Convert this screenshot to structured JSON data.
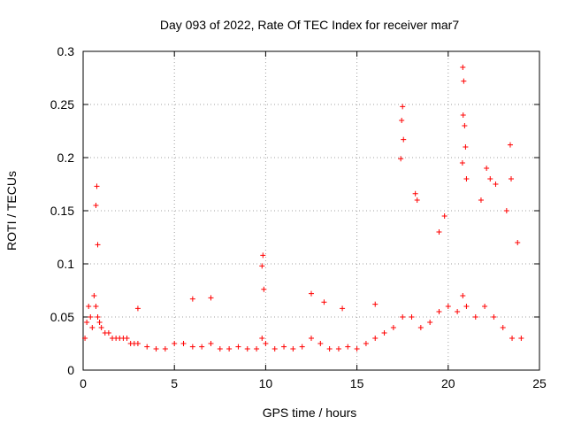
{
  "chart_data": {
    "type": "scatter",
    "title": "Day 093 of 2022, Rate Of TEC Index for receiver mar7",
    "xlabel": "GPS time / hours",
    "ylabel": "ROTI / TECUs",
    "xlim": [
      0,
      25
    ],
    "ylim": [
      0,
      0.3
    ],
    "x_ticks": [
      "0",
      "5",
      "10",
      "15",
      "20",
      "25"
    ],
    "y_ticks": [
      "0",
      "0.05",
      "0.1",
      "0.15",
      "0.2",
      "0.25",
      "0.3"
    ],
    "grid": true,
    "marker": "+",
    "color": "#ff0000",
    "x": [
      0.1,
      0.2,
      0.3,
      0.4,
      0.5,
      0.6,
      0.7,
      0.8,
      0.9,
      1.0,
      1.2,
      1.4,
      1.6,
      1.8,
      2.0,
      2.2,
      2.4,
      2.6,
      2.8,
      3.0,
      3.5,
      4.0,
      4.5,
      5.0,
      5.5,
      6.0,
      6.5,
      7.0,
      7.5,
      8.0,
      8.5,
      9.0,
      9.5,
      9.8,
      10.0,
      10.5,
      11.0,
      11.5,
      12.0,
      12.5,
      13.0,
      13.5,
      14.0,
      14.5,
      15.0,
      15.5,
      16.0,
      16.5,
      17.0,
      17.5,
      18.0,
      18.5,
      19.0,
      19.5,
      20.0,
      20.5,
      20.8,
      21.0,
      21.5,
      22.0,
      22.5,
      23.0,
      23.5,
      24.0,
      0.75,
      0.7,
      0.8,
      17.4,
      17.5,
      17.45,
      17.55,
      18.2,
      18.3,
      20.8,
      20.85,
      20.82,
      20.9,
      20.78,
      21.0,
      20.95,
      22.1,
      22.3,
      23.4,
      23.45,
      9.85,
      9.9,
      9.8,
      3.0,
      6.0,
      7.0,
      12.5,
      14.2,
      13.2,
      16.0,
      19.5,
      19.8,
      21.8,
      22.6,
      23.2,
      23.8
    ],
    "y": [
      0.03,
      0.045,
      0.06,
      0.05,
      0.04,
      0.07,
      0.06,
      0.05,
      0.045,
      0.04,
      0.035,
      0.035,
      0.03,
      0.03,
      0.03,
      0.03,
      0.03,
      0.025,
      0.025,
      0.025,
      0.022,
      0.02,
      0.02,
      0.025,
      0.025,
      0.022,
      0.022,
      0.025,
      0.02,
      0.02,
      0.022,
      0.02,
      0.02,
      0.03,
      0.025,
      0.02,
      0.022,
      0.02,
      0.022,
      0.03,
      0.025,
      0.02,
      0.02,
      0.022,
      0.02,
      0.025,
      0.03,
      0.035,
      0.04,
      0.05,
      0.05,
      0.04,
      0.045,
      0.055,
      0.06,
      0.055,
      0.07,
      0.06,
      0.05,
      0.06,
      0.05,
      0.04,
      0.03,
      0.03,
      0.173,
      0.155,
      0.118,
      0.199,
      0.248,
      0.235,
      0.217,
      0.166,
      0.16,
      0.285,
      0.272,
      0.24,
      0.23,
      0.195,
      0.18,
      0.21,
      0.19,
      0.18,
      0.212,
      0.18,
      0.108,
      0.076,
      0.098,
      0.058,
      0.067,
      0.068,
      0.072,
      0.058,
      0.064,
      0.062,
      0.13,
      0.145,
      0.16,
      0.175,
      0.15,
      0.12
    ]
  }
}
